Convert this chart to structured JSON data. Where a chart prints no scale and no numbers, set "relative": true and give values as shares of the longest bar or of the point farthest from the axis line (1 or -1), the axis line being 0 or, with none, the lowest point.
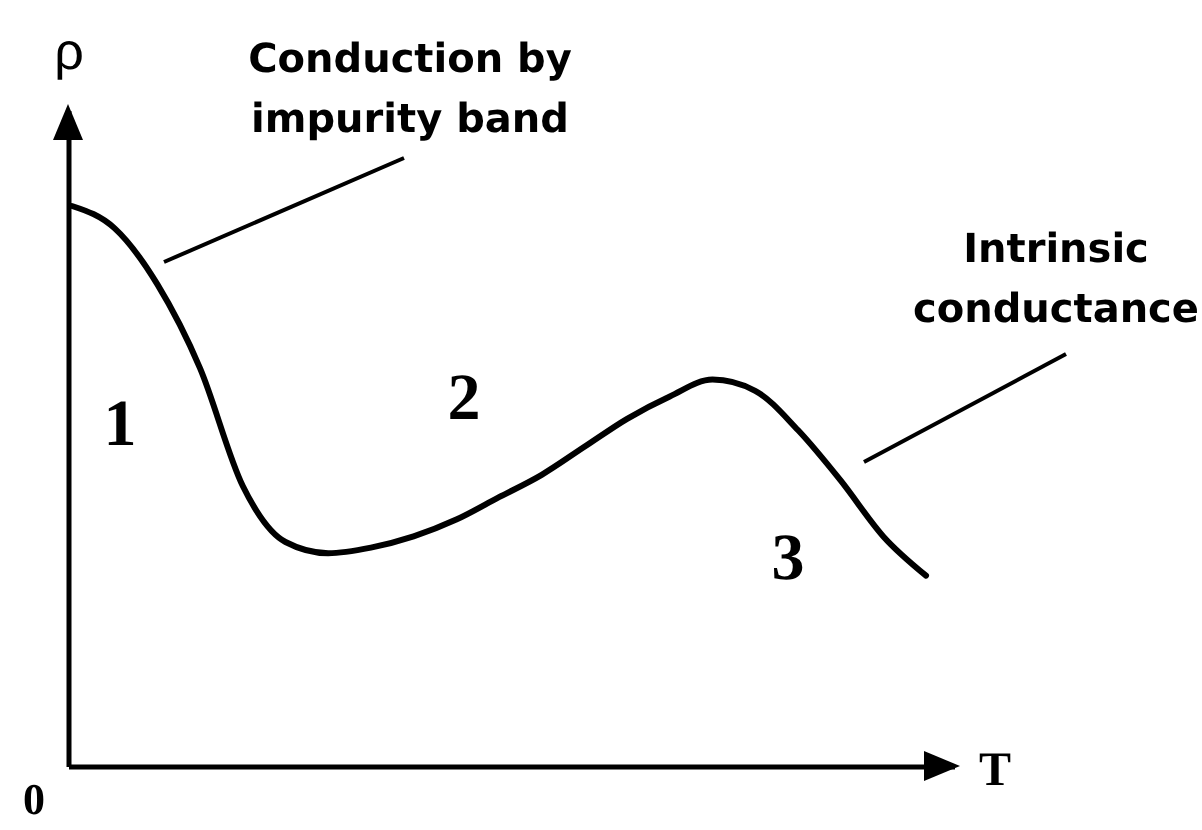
{
  "chart_data": {
    "type": "line",
    "relative": true,
    "xlabel": "T",
    "ylabel": "ρ",
    "categories": [
      null,
      null,
      null,
      null,
      null,
      null,
      null,
      null,
      null,
      null,
      null,
      null,
      null,
      null,
      null,
      null,
      null,
      null,
      null,
      null,
      null
    ],
    "series": [
      {
        "color": "#000000",
        "values": [
          1.0,
          0.96,
          0.86,
          0.71,
          0.5,
          0.4,
          0.38,
          0.39,
          0.41,
          0.44,
          0.48,
          0.52,
          0.57,
          0.62,
          0.66,
          0.69,
          0.67,
          0.6,
          0.51,
          0.41,
          0.34
        ]
      }
    ],
    "annotations": [
      "Conduction by impurity band",
      "Intrinsic conductance",
      "1",
      "2",
      "3",
      "0"
    ]
  }
}
